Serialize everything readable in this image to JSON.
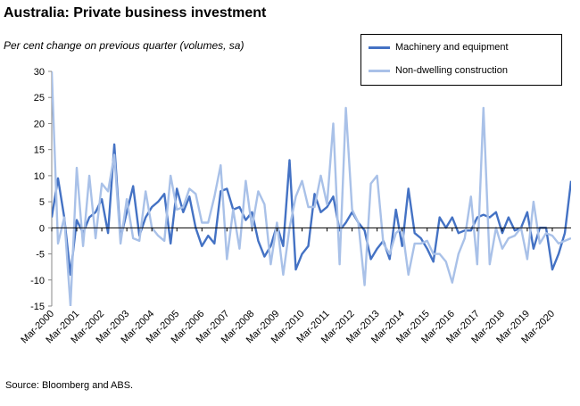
{
  "title": "Australia: Private business investment",
  "subtitle": "Per cent change on previous quarter (volumes, sa)",
  "source": "Source: Bloomberg and ABS.",
  "chart_data": {
    "type": "line",
    "ylim": [
      -15,
      30
    ],
    "yticks": [
      -15,
      -10,
      -5,
      0,
      5,
      10,
      15,
      20,
      25,
      30
    ],
    "grid": false,
    "legend_position": "top-right",
    "x": [
      "Mar-2000",
      "Jun-2000",
      "Sep-2000",
      "Dec-2000",
      "Mar-2001",
      "Jun-2001",
      "Sep-2001",
      "Dec-2001",
      "Mar-2002",
      "Jun-2002",
      "Sep-2002",
      "Dec-2002",
      "Mar-2003",
      "Jun-2003",
      "Sep-2003",
      "Dec-2003",
      "Mar-2004",
      "Jun-2004",
      "Sep-2004",
      "Dec-2004",
      "Mar-2005",
      "Jun-2005",
      "Sep-2005",
      "Dec-2005",
      "Mar-2006",
      "Jun-2006",
      "Sep-2006",
      "Dec-2006",
      "Mar-2007",
      "Jun-2007",
      "Sep-2007",
      "Dec-2007",
      "Mar-2008",
      "Jun-2008",
      "Sep-2008",
      "Dec-2008",
      "Mar-2009",
      "Jun-2009",
      "Sep-2009",
      "Dec-2009",
      "Mar-2010",
      "Jun-2010",
      "Sep-2010",
      "Dec-2010",
      "Mar-2011",
      "Jun-2011",
      "Sep-2011",
      "Dec-2011",
      "Mar-2012",
      "Jun-2012",
      "Sep-2012",
      "Dec-2012",
      "Mar-2013",
      "Jun-2013",
      "Sep-2013",
      "Dec-2013",
      "Mar-2014",
      "Jun-2014",
      "Sep-2014",
      "Dec-2014",
      "Mar-2015",
      "Jun-2015",
      "Sep-2015",
      "Dec-2015",
      "Mar-2016",
      "Jun-2016",
      "Sep-2016",
      "Dec-2016",
      "Mar-2017",
      "Jun-2017",
      "Sep-2017",
      "Dec-2017",
      "Mar-2018",
      "Jun-2018",
      "Sep-2018",
      "Dec-2018",
      "Mar-2019",
      "Jun-2019",
      "Sep-2019",
      "Dec-2019",
      "Mar-2020",
      "Jun-2020",
      "Sep-2020",
      "Dec-2020"
    ],
    "xtick_labels": [
      "Mar-2000",
      "Mar-2001",
      "Mar-2002",
      "Mar-2003",
      "Mar-2004",
      "Mar-2005",
      "Mar-2006",
      "Mar-2007",
      "Mar-2008",
      "Mar-2009",
      "Mar-2010",
      "Mar-2011",
      "Mar-2012",
      "Mar-2013",
      "Mar-2014",
      "Mar-2015",
      "Mar-2016",
      "Mar-2017",
      "Mar-2018",
      "Mar-2019",
      "Mar-2020"
    ],
    "series": [
      {
        "name": "Machinery and equipment",
        "color": "#4472c4",
        "values": [
          2,
          9.5,
          2,
          -9,
          1.5,
          -1,
          2,
          3,
          5.5,
          -1,
          16,
          -2,
          3,
          8,
          -1.5,
          2,
          4,
          5,
          6.5,
          -3,
          7.5,
          3,
          6,
          0,
          -3.5,
          -1.5,
          -3,
          7,
          7.5,
          3.5,
          4,
          1.5,
          3,
          -2.5,
          -5.5,
          -3.5,
          0.5,
          -3.5,
          13,
          -8,
          -5,
          -3.5,
          6.5,
          3,
          4,
          6,
          -0.5,
          1,
          3,
          1,
          -0.5,
          -6,
          -4,
          -2.5,
          -6,
          3.5,
          -3.5,
          7.5,
          -1,
          -2,
          -4,
          -6.5,
          2,
          0,
          2,
          -1,
          -0.5,
          -0.5,
          2,
          2.5,
          2,
          3,
          -1,
          2,
          -0.5,
          0,
          3,
          -4,
          0,
          0,
          -8,
          -5,
          -1,
          9
        ]
      },
      {
        "name": "Non-dwelling construction",
        "color": "#a9c1e8",
        "values": [
          30,
          -3,
          2,
          -15,
          11.5,
          -3.5,
          10,
          -2,
          8.5,
          7,
          14,
          -3,
          5.5,
          -2,
          -2.5,
          7,
          0,
          -1.5,
          -2.5,
          10,
          3.5,
          4,
          7.5,
          6.5,
          1,
          1,
          6,
          12,
          -6,
          3.5,
          -4,
          9,
          0,
          7,
          4.5,
          -7,
          1,
          -9,
          0,
          6,
          9,
          4,
          4,
          10,
          4.5,
          20,
          -7,
          23,
          3.5,
          1,
          -11,
          8.5,
          10,
          -3,
          -5,
          -1,
          0,
          -9,
          -3,
          -3,
          -2.5,
          -5,
          -5,
          -6.5,
          -10.5,
          -5,
          -2,
          6,
          -7,
          23,
          -7,
          0,
          -4,
          -2,
          -1.5,
          0,
          -6,
          5,
          -3,
          -1,
          -1.5,
          -3,
          -2.5,
          -2
        ]
      }
    ]
  }
}
